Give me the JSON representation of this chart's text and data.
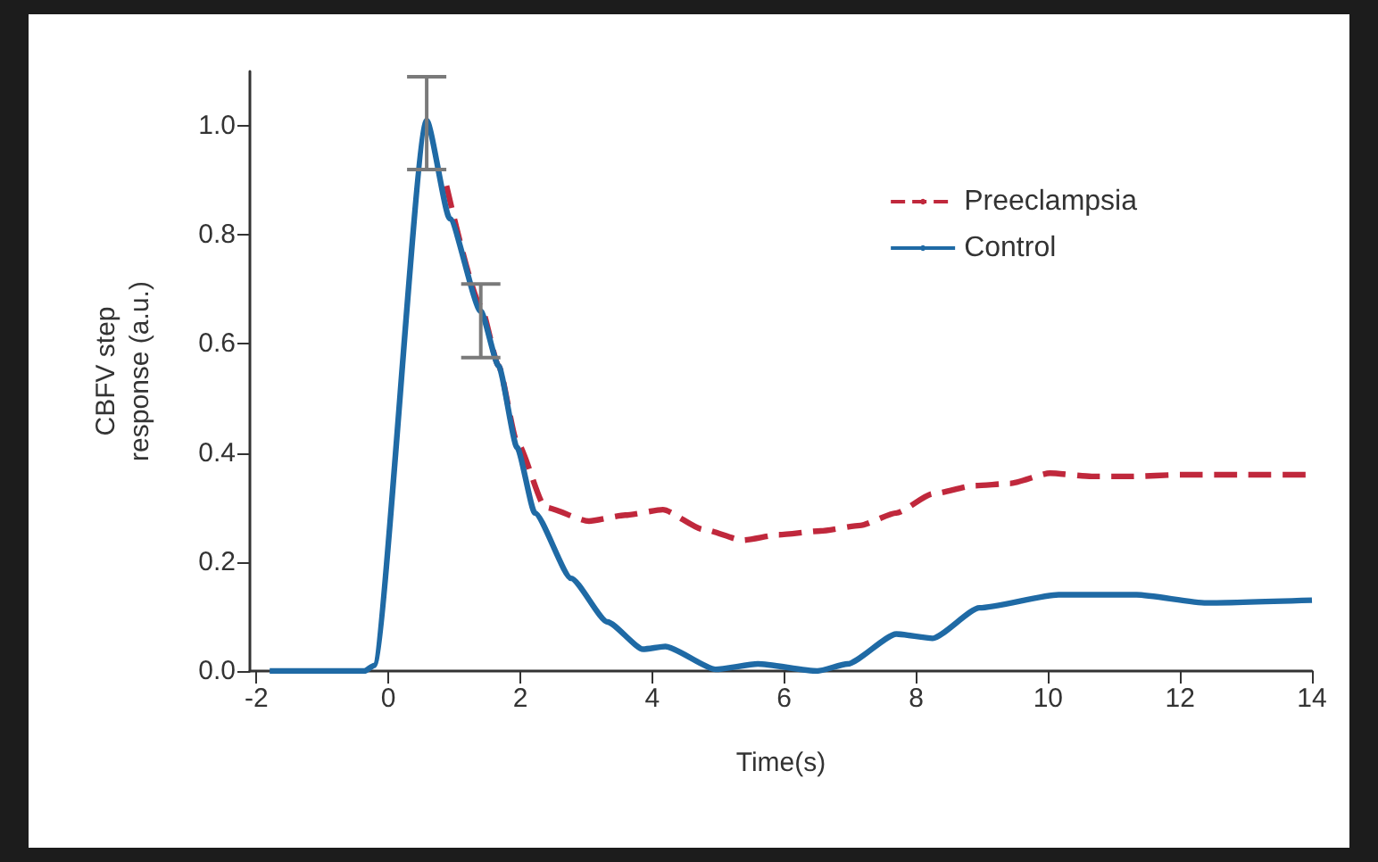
{
  "chart_data": {
    "type": "line",
    "xlabel": "Time(s)",
    "ylabel": "CBFV step\nresponse (a.u.)",
    "xlim": [
      -2.1,
      14
    ],
    "xticks": [
      -2,
      0,
      2,
      4,
      6,
      8,
      10,
      12,
      14
    ],
    "ylim": [
      0,
      1.1
    ],
    "yticks": [
      {
        "value": 0,
        "label": "0.0"
      },
      {
        "value": 0.2,
        "label": "0.2"
      },
      {
        "value": 0.4,
        "label": "0.4"
      },
      {
        "value": 0.6,
        "label": "0.6"
      },
      {
        "value": 0.8,
        "label": "0.8"
      },
      {
        "value": 1,
        "label": "1.0"
      }
    ],
    "grid": false,
    "legend": "top right",
    "marker": "none",
    "series": [
      {
        "name": "Preeclampsia",
        "color": "#c0283c",
        "line_style": "dashed",
        "x": [
          0.88,
          1.4,
          1.67,
          1.95,
          2.38,
          3.04,
          3.59,
          4.16,
          4.77,
          5.37,
          5.92,
          6.55,
          7.15,
          7.7,
          8.25,
          8.88,
          9.42,
          10.03,
          10.66,
          11.26,
          12,
          13,
          14
        ],
        "values": [
          0.89,
          0.67,
          0.56,
          0.42,
          0.3,
          0.275,
          0.286,
          0.296,
          0.26,
          0.24,
          0.25,
          0.257,
          0.267,
          0.29,
          0.325,
          0.34,
          0.344,
          0.363,
          0.357,
          0.357,
          0.36,
          0.36,
          0.36
        ]
      },
      {
        "name": "Control",
        "color": "#1f6aa5",
        "line_style": "solid",
        "x": [
          -1.8,
          -0.36,
          -0.22,
          0.58,
          0.93,
          1.4,
          1.67,
          1.95,
          2.22,
          2.77,
          3.32,
          3.86,
          4.2,
          4.96,
          5.6,
          6.5,
          6.96,
          7.7,
          8.25,
          8.96,
          10.16,
          11.34,
          12.4,
          14
        ],
        "values": [
          0,
          0,
          0.01,
          1.01,
          0.83,
          0.66,
          0.56,
          0.41,
          0.29,
          0.17,
          0.09,
          0.04,
          0.045,
          0.003,
          0.013,
          0,
          0.013,
          0.068,
          0.06,
          0.116,
          0.14,
          0.14,
          0.125,
          0.13
        ],
        "errors": [
          null,
          null,
          null,
          [
            0.92,
            1.09
          ],
          null,
          [
            0.575,
            0.71
          ],
          null,
          null,
          null,
          null,
          null,
          null,
          null,
          null,
          null,
          null,
          null,
          null,
          null,
          null,
          null,
          null,
          null,
          null
        ]
      }
    ]
  }
}
